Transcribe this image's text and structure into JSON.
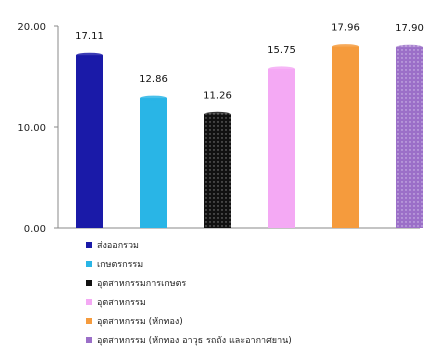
{
  "chart_data": {
    "type": "bar",
    "title": "",
    "xlabel": "",
    "ylabel": "",
    "categories": [
      "ส่งออกรวม",
      "เกษตรกรรม",
      "อุตสาหกรรมการเกษตร",
      "อุตสาหกรรม",
      "อุตสาหกรรม (หักทอง)",
      "อุตสาหกรรม (หักทอง อาวุธ รถถัง และอากาศยาน)"
    ],
    "values": [
      17.11,
      12.86,
      11.26,
      15.75,
      17.96,
      17.9
    ],
    "value_labels": [
      "17.11",
      "12.86",
      "11.26",
      "15.75",
      "17.96",
      "17.90"
    ],
    "colors": [
      "#1a1aa8",
      "#29b5e6",
      "#111111",
      "#f4a9f4",
      "#f59b3d",
      "#9b6fc8"
    ],
    "patterns": [
      "solid",
      "solid",
      "dotted",
      "solid",
      "solid",
      "dotted"
    ],
    "yticks": [
      0,
      10,
      20
    ],
    "ytick_labels": [
      "0.00",
      "10.00",
      "20.00"
    ],
    "ylim": [
      0,
      20
    ],
    "grid": false,
    "legend_position": "bottom-left"
  }
}
